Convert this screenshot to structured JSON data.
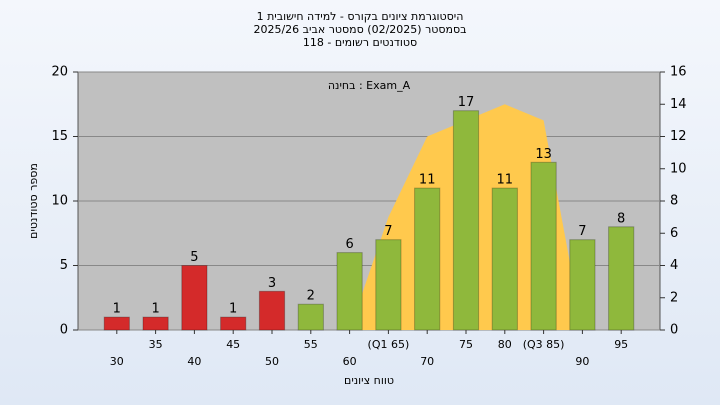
{
  "chart_data": {
    "type": "bar",
    "title": [
      "היסטוגרמת ציונים בקורס - למידה חישובית 1",
      "בסמסטר (02/2025) סמסטר אביב 2025/26",
      "סטודנטים רשומים - 118"
    ],
    "annotation": "בחינה : Exam_A",
    "x_label": "טווח ציונים",
    "y_label": "מספר סטודנטים",
    "x": [
      30,
      35,
      40,
      45,
      50,
      55,
      60,
      65,
      70,
      75,
      80,
      85,
      90,
      95
    ],
    "values": [
      1,
      1,
      5,
      1,
      3,
      2,
      6,
      7,
      11,
      17,
      11,
      13,
      7,
      8
    ],
    "colors": [
      "#d42a2a",
      "#d42a2a",
      "#d42a2a",
      "#d42a2a",
      "#d42a2a",
      "#8fb83c",
      "#8fb83c",
      "#8fb83c",
      "#8fb83c",
      "#8fb83c",
      "#8fb83c",
      "#8fb83c",
      "#8fb83c",
      "#8fb83c"
    ],
    "xlim": [
      25,
      100
    ],
    "xticks": [
      30,
      35,
      40,
      45,
      50,
      55,
      60,
      {
        "value": 65,
        "label": "(Q1 65)"
      },
      70,
      75,
      80,
      {
        "value": 85,
        "label": "(Q3 85)"
      },
      90,
      95
    ],
    "ylim": [
      0,
      20
    ],
    "yticks": [
      0,
      5,
      10,
      15,
      20
    ],
    "y2lim": [
      0,
      16
    ],
    "y2ticks": [
      0,
      2,
      4,
      6,
      8,
      10,
      12,
      14,
      16
    ],
    "area": {
      "axis": "y2",
      "color": "#ffc94d",
      "x": [
        60,
        65,
        70,
        75,
        80,
        85,
        90
      ],
      "values": [
        0,
        7,
        12,
        13,
        14,
        13,
        0
      ]
    },
    "grid": true
  }
}
